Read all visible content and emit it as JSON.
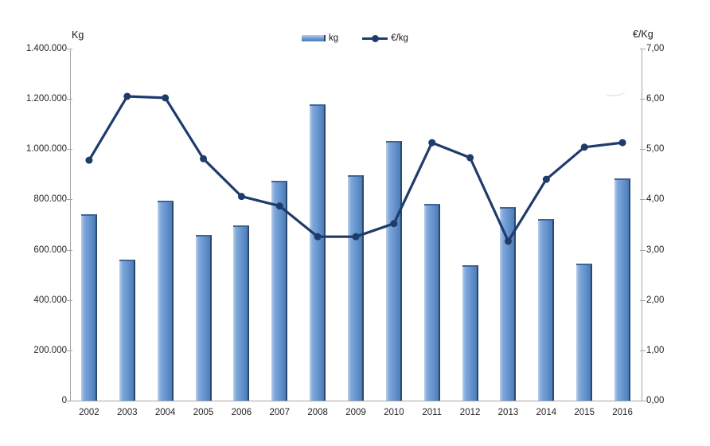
{
  "chart_data": {
    "type": "combo-bar-line",
    "categories": [
      "2002",
      "2003",
      "2004",
      "2005",
      "2006",
      "2007",
      "2008",
      "2009",
      "2010",
      "2011",
      "2012",
      "2013",
      "2014",
      "2015",
      "2016"
    ],
    "series": [
      {
        "name": "kg",
        "type": "bar",
        "axis": "left",
        "values": [
          740000,
          560000,
          795000,
          660000,
          698000,
          873000,
          1178000,
          895000,
          1032000,
          783000,
          540000,
          770000,
          722000,
          545000,
          883000
        ]
      },
      {
        "name": "€/kg",
        "type": "line",
        "axis": "right",
        "values": [
          4.78,
          6.05,
          6.02,
          4.81,
          4.06,
          3.87,
          3.26,
          3.26,
          3.52,
          5.13,
          4.83,
          3.17,
          4.4,
          5.04,
          5.13
        ]
      }
    ],
    "left_axis": {
      "title": "Kg",
      "min": 0,
      "max": 1400000,
      "step": 200000,
      "tick_labels_top_to_bottom": [
        "1.400.000",
        "1.200.000",
        "1.000.000",
        "800.000",
        "600.000",
        "400.000",
        "200.000",
        "0"
      ]
    },
    "right_axis": {
      "title": "€/Kg",
      "min": 0,
      "max": 7,
      "step": 1,
      "tick_labels_top_to_bottom": [
        "7,00",
        "6,00",
        "5,00",
        "4,00",
        "3,00",
        "2,00",
        "1,00",
        "0,00"
      ]
    },
    "legend": {
      "position": "top-center",
      "entries": [
        "kg",
        "€/kg"
      ]
    },
    "grid": false
  },
  "colors": {
    "bar_fill": "#6b99d3",
    "bar_highlight": "#b9cfe9",
    "bar_shade": "#4d7cb8",
    "bar_edge": "#27486f",
    "line": "#1e3c6b",
    "axis": "#a6a6a6",
    "text": "#262626"
  }
}
